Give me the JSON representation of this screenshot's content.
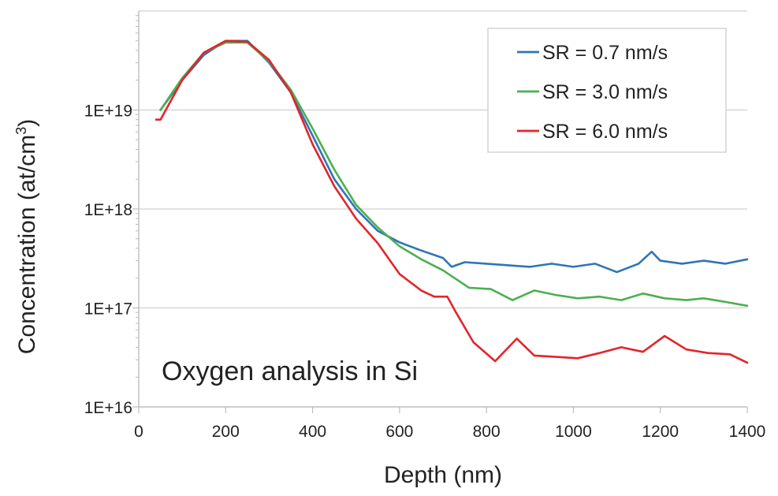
{
  "chart_data": {
    "type": "line",
    "title": "",
    "xlabel": "Depth (nm)",
    "ylabel": "Concentration (at/cm",
    "ylabel_superscript": "3",
    "ylabel_suffix": ")",
    "xlim": [
      0,
      1400
    ],
    "ylim": [
      1e+16,
      1e+20
    ],
    "yscale": "log",
    "x_ticks": [
      "0",
      "200",
      "400",
      "600",
      "800",
      "1000",
      "1200",
      "1400"
    ],
    "y_ticks": [
      "1E+16",
      "1E+17",
      "1E+18",
      "1E+19"
    ],
    "grid": "horizontal",
    "legend_position": "top-right",
    "annotation": "Oxygen analysis in Si",
    "series": [
      {
        "name": "SR = 0.7 nm/s",
        "color": "#2e75b6",
        "x": [
          50,
          100,
          150,
          200,
          250,
          300,
          350,
          400,
          450,
          500,
          550,
          600,
          650,
          700,
          720,
          750,
          800,
          850,
          900,
          950,
          1000,
          1050,
          1100,
          1150,
          1180,
          1200,
          1250,
          1300,
          1350,
          1400
        ],
        "y": [
          1e+19,
          2e+19,
          3.6e+19,
          5e+19,
          5e+19,
          3e+19,
          1.5e+19,
          5.5e+18,
          2e+18,
          1e+18,
          6e+17,
          4.6e+17,
          3.8e+17,
          3.2e+17,
          2.6e+17,
          2.9e+17,
          2.8e+17,
          2.7e+17,
          2.6e+17,
          2.8e+17,
          2.6e+17,
          2.8e+17,
          2.3e+17,
          2.8e+17,
          3.7e+17,
          3e+17,
          2.8e+17,
          3e+17,
          2.8e+17,
          3.1e+17
        ]
      },
      {
        "name": "SR = 3.0 nm/s",
        "color": "#4caf50",
        "x": [
          50,
          100,
          150,
          200,
          250,
          300,
          350,
          400,
          450,
          500,
          550,
          600,
          650,
          700,
          760,
          810,
          860,
          910,
          960,
          1010,
          1060,
          1110,
          1160,
          1210,
          1260,
          1300,
          1350,
          1400
        ],
        "y": [
          1e+19,
          2.1e+19,
          3.8e+19,
          4.8e+19,
          4.8e+19,
          3.1e+19,
          1.6e+19,
          6.5e+18,
          2.5e+18,
          1.1e+18,
          6.5e+17,
          4.2e+17,
          3.1e+17,
          2.4e+17,
          1.6e+17,
          1.55e+17,
          1.2e+17,
          1.5e+17,
          1.35e+17,
          1.25e+17,
          1.3e+17,
          1.2e+17,
          1.4e+17,
          1.25e+17,
          1.2e+17,
          1.25e+17,
          1.15e+17,
          1.05e+17
        ]
      },
      {
        "name": "SR = 6.0 nm/s",
        "color": "#e3242b",
        "x": [
          40,
          50,
          100,
          150,
          200,
          250,
          300,
          350,
          400,
          450,
          500,
          550,
          600,
          650,
          680,
          710,
          730,
          770,
          820,
          870,
          910,
          960,
          1010,
          1060,
          1110,
          1160,
          1210,
          1260,
          1310,
          1360,
          1400
        ],
        "y": [
          8e+18,
          8e+18,
          2e+19,
          3.8e+19,
          5e+19,
          4.9e+19,
          3.2e+19,
          1.5e+19,
          4.5e+18,
          1.7e+18,
          8e+17,
          4.5e+17,
          2.2e+17,
          1.5e+17,
          1.3e+17,
          1.3e+17,
          9e+16,
          4.5e+16,
          2.9e+16,
          4.9e+16,
          3.3e+16,
          3.2e+16,
          3.1e+16,
          3.5e+16,
          4e+16,
          3.6e+16,
          5.2e+16,
          3.8e+16,
          3.5e+16,
          3.4e+16,
          2.8e+16
        ]
      }
    ]
  }
}
